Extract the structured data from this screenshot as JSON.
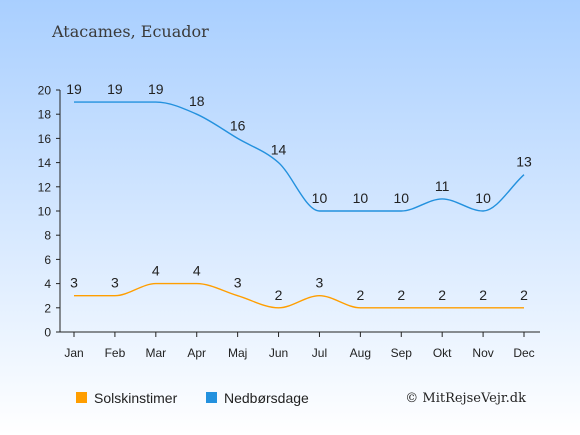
{
  "title": "Atacames, Ecuador",
  "credit": "© MitRejseVejr.dk",
  "colors": {
    "sun": "#FF9E00",
    "rain": "#2391DE",
    "bg_top": "#A9CFFF",
    "bg_bottom": "#FFFFFF"
  },
  "chart_data": {
    "type": "line",
    "categories": [
      "Jan",
      "Feb",
      "Mar",
      "Apr",
      "Maj",
      "Jun",
      "Jul",
      "Aug",
      "Sep",
      "Okt",
      "Nov",
      "Dec"
    ],
    "series": [
      {
        "name": "Solskinstimer",
        "color": "#FF9E00",
        "values": [
          3,
          3,
          4,
          4,
          3,
          2,
          3,
          2,
          2,
          2,
          2,
          2
        ]
      },
      {
        "name": "Nedbørsdage",
        "color": "#2391DE",
        "values": [
          19,
          19,
          19,
          18,
          16,
          14,
          10,
          10,
          10,
          11,
          10,
          13
        ]
      }
    ],
    "yticks": [
      "0",
      "2",
      "4",
      "6",
      "8",
      "10",
      "12",
      "14",
      "16",
      "18",
      "20"
    ],
    "ylim": [
      0,
      20
    ],
    "grid": false,
    "legend_position": "bottom-left"
  }
}
